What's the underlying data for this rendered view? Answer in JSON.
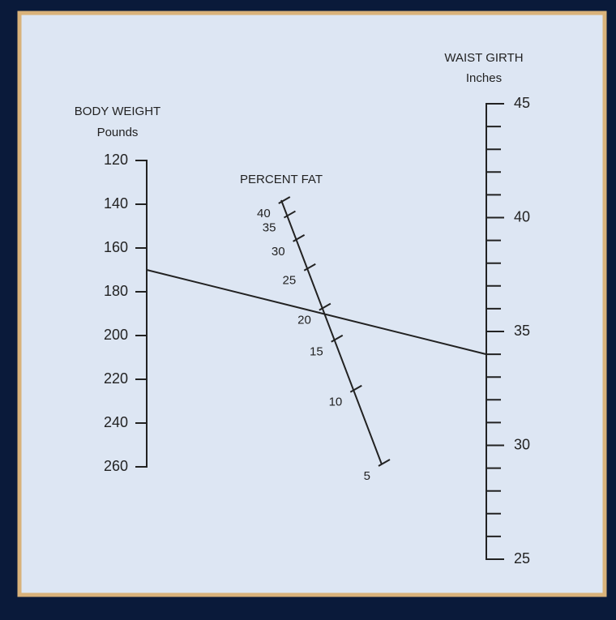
{
  "body_weight": {
    "title": "BODY WEIGHT",
    "unit": "Pounds",
    "range": [
      120,
      260
    ],
    "ticks": [
      120,
      140,
      160,
      180,
      200,
      220,
      240,
      260
    ]
  },
  "percent_fat": {
    "title": "PERCENT FAT",
    "ticks": [
      40,
      35,
      30,
      25,
      20,
      15,
      10,
      5
    ]
  },
  "waist_girth": {
    "title": "WAIST GIRTH",
    "unit": "Inches",
    "range": [
      25,
      45
    ],
    "ticks": [
      25,
      30,
      35,
      40,
      45
    ],
    "minor_step": 1
  },
  "reading": {
    "body_weight": 170,
    "waist_girth": 34
  }
}
